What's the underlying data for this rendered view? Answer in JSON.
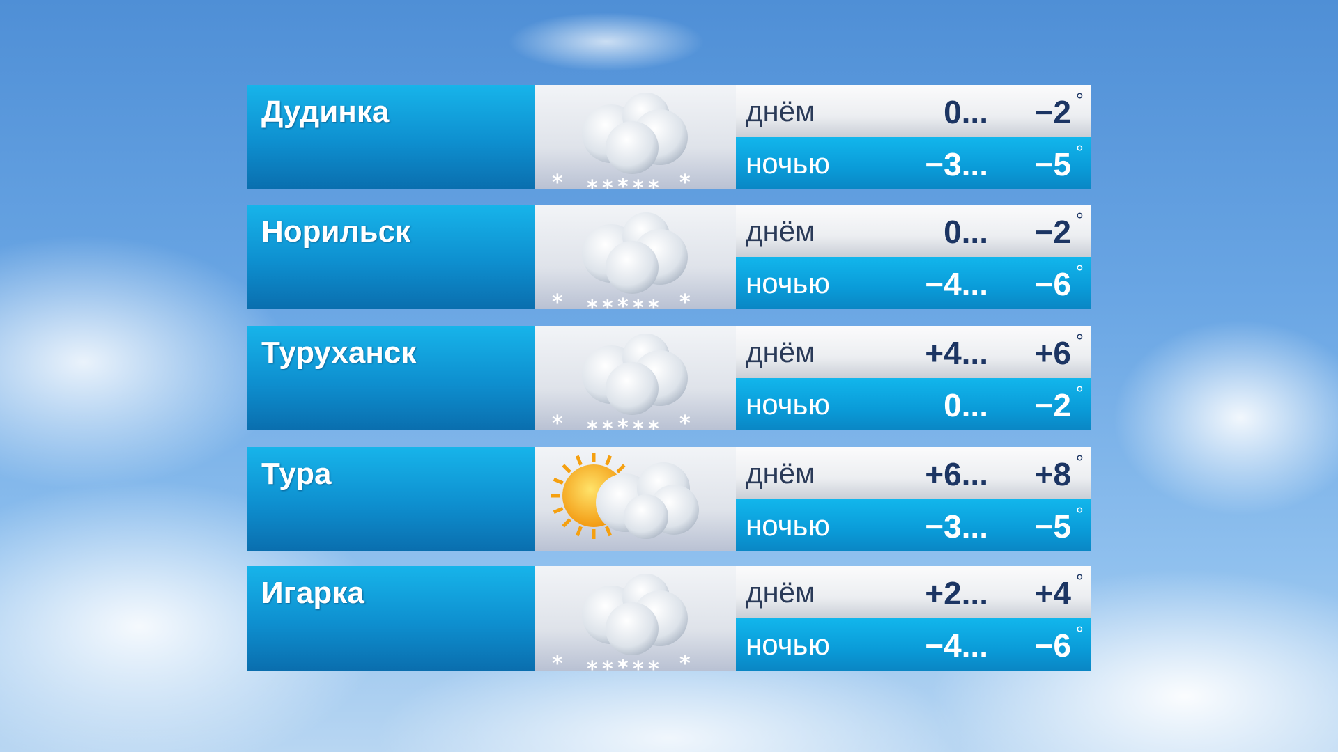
{
  "labels": {
    "day": "днём",
    "night": "ночью",
    "degree": "°"
  },
  "rows": [
    {
      "city": "Дудинка",
      "icon": "cloud-snow",
      "day": [
        "0...",
        "−2"
      ],
      "night": [
        "−3...",
        "−5"
      ]
    },
    {
      "city": "Норильск",
      "icon": "cloud-snow",
      "day": [
        "0...",
        "−2"
      ],
      "night": [
        "−4...",
        "−6"
      ]
    },
    {
      "city": "Туруханск",
      "icon": "cloud-snow",
      "day": [
        "+4...",
        "+6"
      ],
      "night": [
        "0...",
        "−2"
      ]
    },
    {
      "city": "Тура",
      "icon": "sun-cloud",
      "day": [
        "+6...",
        "+8"
      ],
      "night": [
        "−3...",
        "−5"
      ]
    },
    {
      "city": "Игарка",
      "icon": "cloud-snow",
      "day": [
        "+2...",
        "+4"
      ],
      "night": [
        "−4...",
        "−6"
      ]
    }
  ]
}
